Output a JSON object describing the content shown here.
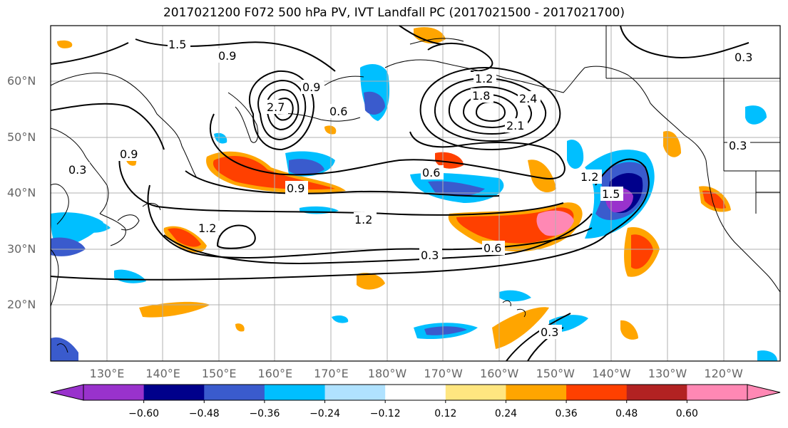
{
  "title": "2017021200 F072 500 hPa PV, IVT Landfall PC (2017021500 - 2017021700)",
  "map": {
    "lat_labels": [
      {
        "label": "60°N",
        "lat": 60
      },
      {
        "label": "50°N",
        "lat": 50
      },
      {
        "label": "40°N",
        "lat": 40
      },
      {
        "label": "30°N",
        "lat": 30
      },
      {
        "label": "20°N",
        "lat": 20
      }
    ],
    "lon_labels": [
      {
        "label": "130°E",
        "lon": 130
      },
      {
        "label": "140°E",
        "lon": 140
      },
      {
        "label": "150°E",
        "lon": 150
      },
      {
        "label": "160°E",
        "lon": 160
      },
      {
        "label": "170°E",
        "lon": 170
      },
      {
        "label": "180°W",
        "lon": 180
      },
      {
        "label": "170°W",
        "lon": 190
      },
      {
        "label": "160°W",
        "lon": 200
      },
      {
        "label": "150°W",
        "lon": 210
      },
      {
        "label": "140°W",
        "lon": 220
      },
      {
        "label": "130°W",
        "lon": 230
      },
      {
        "label": "120°W",
        "lon": 240
      }
    ],
    "contour_labels": [
      "1.5",
      "1.2",
      "0.9",
      "0.6",
      "0.3",
      "1.8",
      "2.1",
      "2.4",
      "2.7"
    ]
  },
  "colorbar": {
    "colors": [
      "#9932cc",
      "#00008b",
      "#3a5bcd",
      "#00bfff",
      "#b0e2ff",
      "#ffffff",
      "#ffe680",
      "#ffa500",
      "#ff4000",
      "#b22222",
      "#ff88b4"
    ],
    "tick_labels": [
      "−0.60",
      "−0.48",
      "−0.36",
      "−0.24",
      "−0.12",
      "0.12",
      "0.24",
      "0.36",
      "0.48",
      "0.60"
    ]
  }
}
